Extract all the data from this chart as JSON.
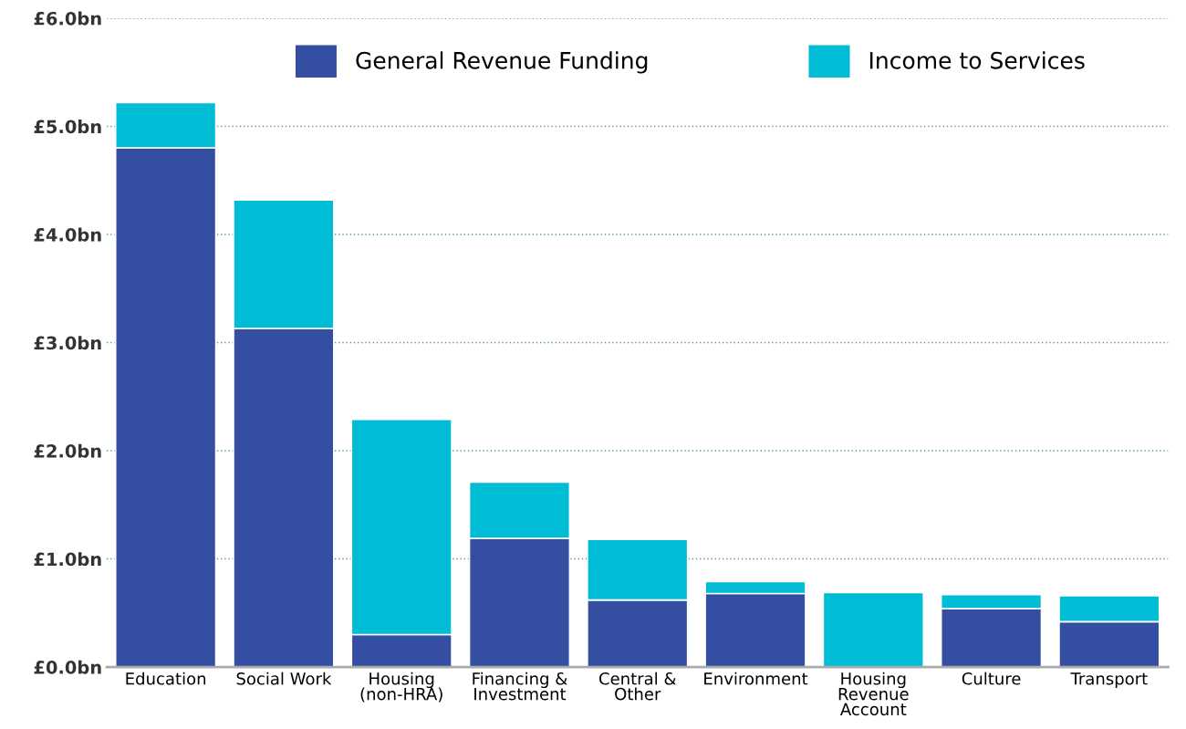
{
  "chart_data": {
    "type": "bar",
    "stacked": true,
    "categories": [
      "Education",
      "Social Work",
      "Housing\n(non-HRA)",
      "Financing &\nInvestment",
      "Central &\nOther",
      "Environment",
      "Housing\nRevenue\nAccount",
      "Culture",
      "Transport"
    ],
    "series": [
      {
        "name": "General Revenue Funding",
        "color": "#344ea1",
        "values": [
          4.8,
          3.13,
          0.3,
          1.19,
          0.62,
          0.68,
          0,
          0.54,
          0.42
        ]
      },
      {
        "name": "Income to Services",
        "color": "#00bcd4",
        "values": [
          0.42,
          1.19,
          1.99,
          0.52,
          0.56,
          0.11,
          0.69,
          0.13,
          0.24
        ]
      }
    ],
    "ylim": [
      0,
      6
    ],
    "yticks": [
      {
        "value": 0,
        "label": "£0.0bn"
      },
      {
        "value": 1,
        "label": "£1.0bn"
      },
      {
        "value": 2,
        "label": "£2.0bn"
      },
      {
        "value": 3,
        "label": "£3.0bn"
      },
      {
        "value": 4,
        "label": "£4.0bn"
      },
      {
        "value": 5,
        "label": "£5.0bn"
      },
      {
        "value": 6,
        "label": "£6.0bn"
      }
    ],
    "grid": "y",
    "legend": "top"
  }
}
